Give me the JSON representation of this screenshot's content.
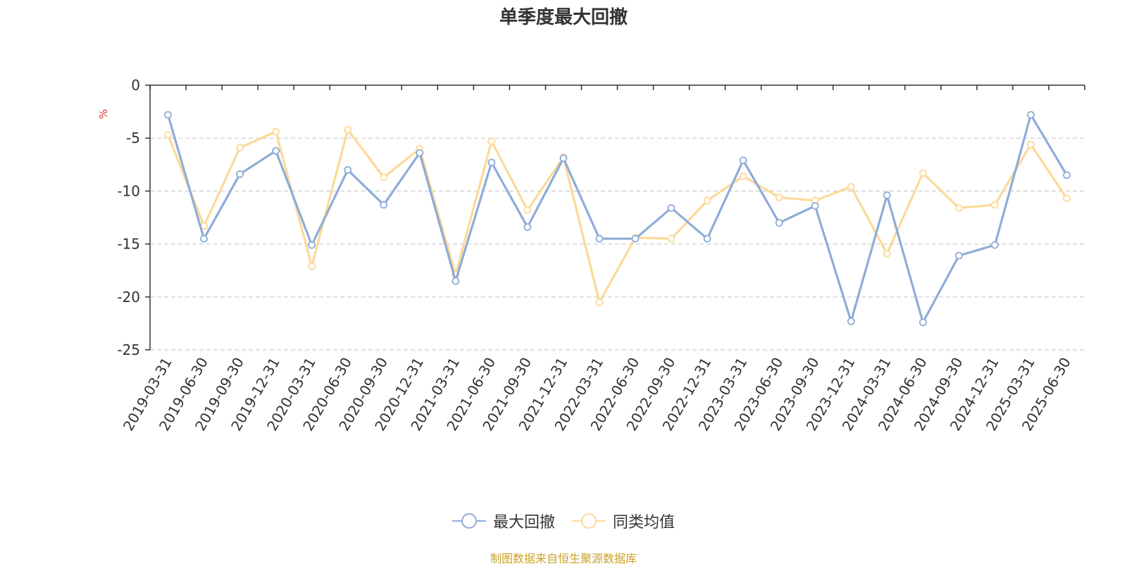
{
  "title": "单季度最大回撤",
  "source_note": "制图数据来自恒生聚源数据库",
  "colors": {
    "series_1": "#8eacd8",
    "series_2": "#fcd998",
    "axis": "#333333",
    "grid": "#cccccc",
    "unit": "#e03030"
  },
  "chart_data": {
    "type": "line",
    "ylabel": "%",
    "ylim": [
      -25,
      0
    ],
    "yticks": [
      0,
      -5,
      -10,
      -15,
      -20,
      -25
    ],
    "grid": "horizontal dashed",
    "legend_position": "bottom-center",
    "categories": [
      "2019-03-31",
      "2019-06-30",
      "2019-09-30",
      "2019-12-31",
      "2020-03-31",
      "2020-06-30",
      "2020-09-30",
      "2020-12-31",
      "2021-03-31",
      "2021-06-30",
      "2021-09-30",
      "2021-12-31",
      "2022-03-31",
      "2022-06-30",
      "2022-09-30",
      "2022-12-31",
      "2023-03-31",
      "2023-06-30",
      "2023-09-30",
      "2023-12-31",
      "2024-03-31",
      "2024-06-30",
      "2024-09-30",
      "2024-12-31",
      "2025-03-31",
      "2025-06-30"
    ],
    "series": [
      {
        "name": "最大回撤",
        "values": [
          -2.8,
          -14.5,
          -8.4,
          -6.2,
          -15.1,
          -8.0,
          -11.3,
          -6.4,
          -18.5,
          -7.3,
          -13.4,
          -6.9,
          -14.5,
          -14.5,
          -11.6,
          -14.5,
          -7.1,
          -13.0,
          -11.4,
          -22.3,
          -10.4,
          -22.4,
          -16.1,
          -15.1,
          -2.8,
          -8.5
        ]
      },
      {
        "name": "同类均值",
        "values": [
          -4.7,
          -13.3,
          -5.9,
          -4.4,
          -17.1,
          -4.2,
          -8.7,
          -6.0,
          -17.9,
          -5.3,
          -11.8,
          -6.8,
          -20.5,
          -14.4,
          -14.5,
          -10.9,
          -8.6,
          -10.6,
          -10.9,
          -9.6,
          -15.9,
          -8.3,
          -11.6,
          -11.3,
          -5.6,
          -10.7
        ]
      }
    ]
  }
}
